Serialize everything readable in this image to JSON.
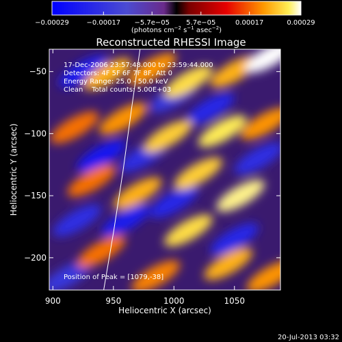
{
  "chart_data": {
    "type": "heatmap",
    "title": "Reconstructed RHESSI Image",
    "xlabel": "Heliocentric X (arcsec)",
    "ylabel": "Heliocentric Y (arcsec)",
    "xlim": [
      897,
      1088
    ],
    "ylim": [
      -226,
      -32
    ],
    "xticks": [
      900,
      950,
      1000,
      1050
    ],
    "xtick_labels": [
      "900",
      "950",
      "1000",
      "1050"
    ],
    "yticks": [
      -50,
      -100,
      -150,
      -200
    ],
    "ytick_labels": [
      "−50",
      "−100",
      "−150",
      "−200"
    ],
    "colorbar": {
      "range": [
        -0.00029,
        0.00029
      ],
      "ticks": [
        -0.00029,
        -0.00017,
        -5.7e-05,
        5.7e-05,
        0.00017,
        0.00029
      ],
      "tick_labels": [
        "−0.00029",
        "−0.00017",
        "−5.7e−05",
        "5.7e−05",
        "0.00017",
        "0.00029"
      ],
      "label": "(photons cm",
      "label_sup1": "−2",
      "label_mid": " s",
      "label_sup2": "−1",
      "label_mid2": " asec",
      "label_sup3": "−2",
      "label_end": ")"
    },
    "annotations": {
      "time": "17-Dec-2006 23:57:48.000 to 23:59:44.000",
      "detectors": "Detectors: 4F 5F 6F 7F 8F, Att 0",
      "energy": "Energy Range: 25.0 - 50.0 keV",
      "clean": "Clean    Total counts: 5.00E+03",
      "peak": "Position of Peak = [1079,-38]"
    },
    "peak": {
      "x": 1079,
      "y": -38
    },
    "limb_curve": [
      [
        972,
        -32
      ],
      [
        965,
        -80
      ],
      [
        958,
        -130
      ],
      [
        950,
        -180
      ],
      [
        942,
        -226
      ]
    ],
    "bright_sources": [
      {
        "x": 945,
        "y": -52,
        "v": 0.00022
      },
      {
        "x": 982,
        "y": -48,
        "v": 0.0002
      },
      {
        "x": 1012,
        "y": -58,
        "v": 0.00025
      },
      {
        "x": 1050,
        "y": -50,
        "v": 0.00022
      },
      {
        "x": 1079,
        "y": -38,
        "v": 0.00029
      },
      {
        "x": 918,
        "y": -95,
        "v": 0.00018
      },
      {
        "x": 958,
        "y": -88,
        "v": 0.0002
      },
      {
        "x": 995,
        "y": -102,
        "v": 0.00024
      },
      {
        "x": 1040,
        "y": -98,
        "v": 0.00026
      },
      {
        "x": 1075,
        "y": -92,
        "v": 0.0002
      },
      {
        "x": 932,
        "y": -138,
        "v": 0.00018
      },
      {
        "x": 970,
        "y": -148,
        "v": 0.00022
      },
      {
        "x": 1020,
        "y": -132,
        "v": 0.00024
      },
      {
        "x": 1055,
        "y": -150,
        "v": 0.00027
      },
      {
        "x": 1012,
        "y": -178,
        "v": 0.00025
      },
      {
        "x": 940,
        "y": -195,
        "v": 0.00018
      },
      {
        "x": 1045,
        "y": -205,
        "v": 0.00022
      },
      {
        "x": 1080,
        "y": -215,
        "v": 0.0002
      },
      {
        "x": 985,
        "y": -215,
        "v": 0.00019
      }
    ],
    "dark_sources": [
      {
        "x": 925,
        "y": -50,
        "v": -0.00022
      },
      {
        "x": 1030,
        "y": -80,
        "v": -0.0002
      },
      {
        "x": 940,
        "y": -118,
        "v": -0.00024
      },
      {
        "x": 975,
        "y": -118,
        "v": -0.00018
      },
      {
        "x": 1000,
        "y": -155,
        "v": -0.0002
      },
      {
        "x": 1070,
        "y": -120,
        "v": -0.00018
      },
      {
        "x": 960,
        "y": -170,
        "v": -0.00022
      },
      {
        "x": 1050,
        "y": -185,
        "v": -0.0002
      },
      {
        "x": 920,
        "y": -170,
        "v": -0.00018
      },
      {
        "x": 1000,
        "y": -70,
        "v": -0.00016
      },
      {
        "x": 912,
        "y": -215,
        "v": -0.00016
      }
    ]
  },
  "footer": {
    "date": "20-Jul-2013 03:32"
  }
}
